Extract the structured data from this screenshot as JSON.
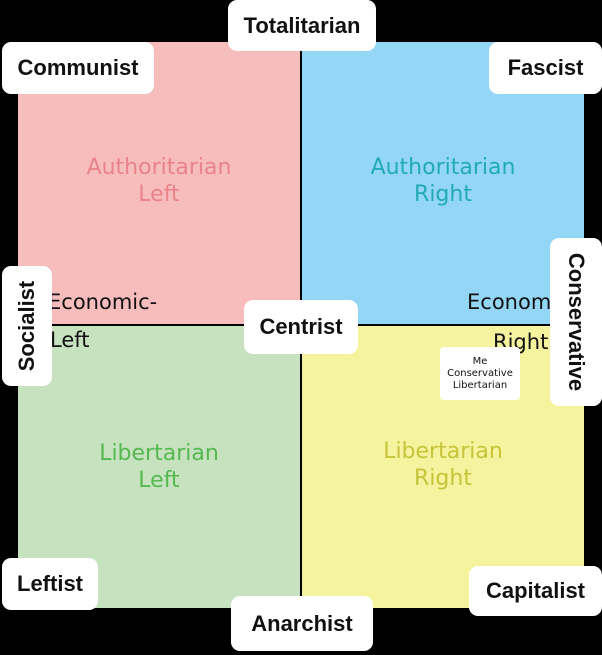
{
  "quadrants": {
    "top_left": "Authoritarian\nLeft",
    "top_right": "Authoritarian\nRight",
    "bottom_left": "Libertarian\nLeft",
    "bottom_right": "Libertarian\nRight"
  },
  "axis_labels": {
    "economic_left_line1": "Economic-",
    "economic_left_line2": "Left",
    "economic_right_line1": "Econom",
    "economic_right_line2": "Right"
  },
  "tags": {
    "top": "Totalitarian",
    "top_left": "Communist",
    "top_right": "Fascist",
    "center": "Centrist",
    "left": "Socialist",
    "right": "Conservative",
    "bottom_left": "Leftist",
    "bottom_right": "Capitalist",
    "bottom": "Anarchist"
  },
  "marker": {
    "line1": "Me",
    "line2": "Conservative",
    "line3": "Libertarian"
  },
  "colors": {
    "authoritarian_left": "#f7bcbc",
    "authoritarian_right": "#93d6f5",
    "libertarian_left": "#c7e2bf",
    "libertarian_right": "#f5f39d"
  }
}
